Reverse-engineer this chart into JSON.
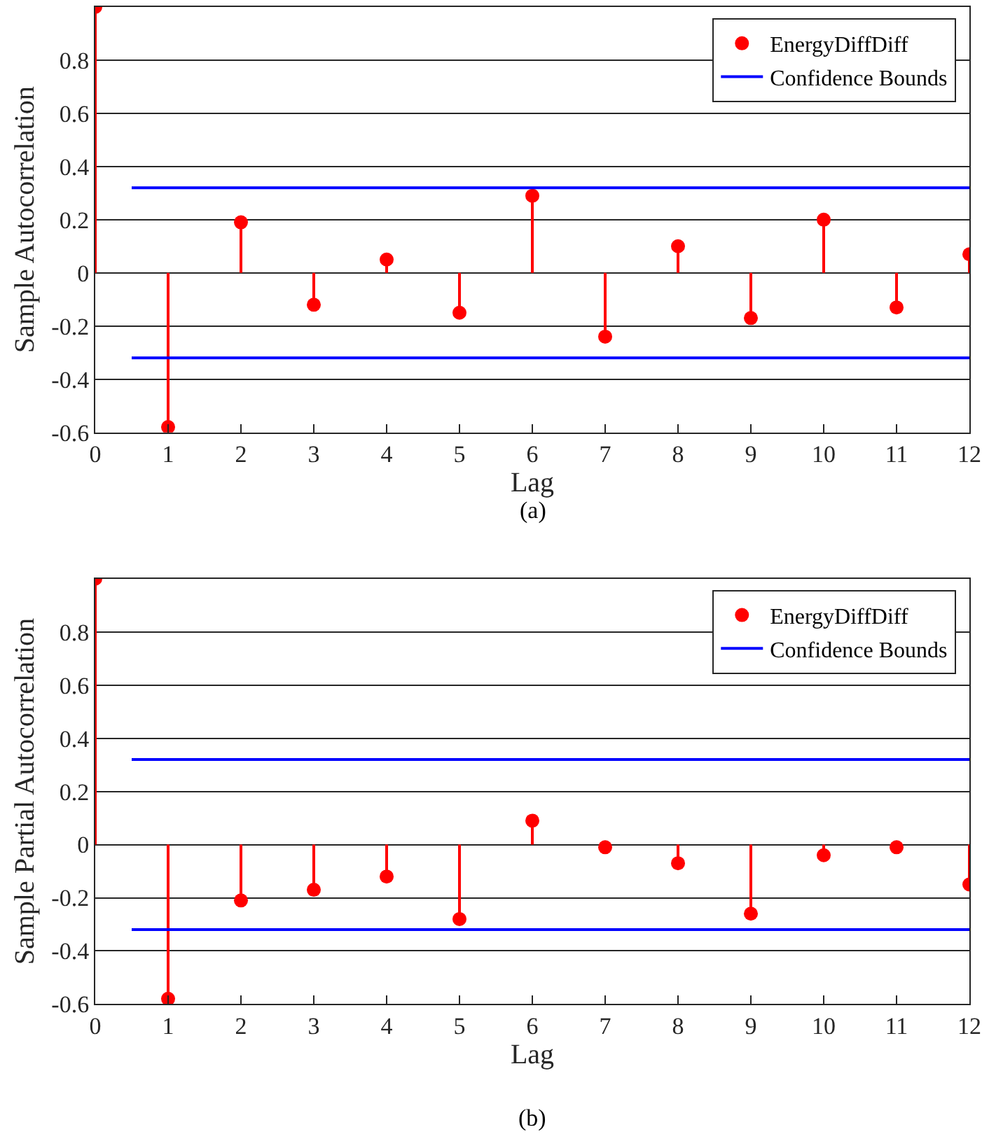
{
  "chart_data": [
    {
      "type": "lollipop",
      "xlabel": "Lag",
      "ylabel": "Sample Autocorrelation",
      "annotations": [
        "(a)"
      ],
      "xlim": [
        0,
        12
      ],
      "xticks": [
        0,
        1,
        2,
        3,
        4,
        5,
        6,
        7,
        8,
        9,
        10,
        11,
        12
      ],
      "ylim": [
        -0.6,
        1
      ],
      "yticks": [
        -0.6,
        -0.4,
        -0.2,
        0,
        0.2,
        0.4,
        0.6,
        0.8
      ],
      "grid": "y",
      "legend": "top right",
      "series": [
        {
          "name": "EnergyDiffDiff",
          "marker": "circle",
          "color": "#ff0000",
          "x": [
            0,
            1,
            2,
            3,
            4,
            5,
            6,
            7,
            8,
            9,
            10,
            11,
            12
          ],
          "values": [
            1,
            -0.58,
            0.19,
            -0.12,
            0.05,
            -0.15,
            0.29,
            -0.24,
            0.1,
            -0.17,
            0.2,
            -0.13,
            0.07
          ]
        },
        {
          "name": "Confidence Bounds",
          "type": "line",
          "color": "#0000ff",
          "x": [
            0.5,
            12
          ],
          "values": [
            0.32,
            0.32
          ]
        },
        {
          "type": "line",
          "color": "#0000ff",
          "x": [
            0.5,
            12
          ],
          "values": [
            -0.32,
            -0.32
          ]
        }
      ]
    },
    {
      "type": "lollipop",
      "xlabel": "Lag",
      "ylabel": "Sample Partial Autocorrelation",
      "annotations": [
        "(b)"
      ],
      "xlim": [
        0,
        12
      ],
      "xticks": [
        0,
        1,
        2,
        3,
        4,
        5,
        6,
        7,
        8,
        9,
        10,
        11,
        12
      ],
      "ylim": [
        -0.6,
        1
      ],
      "yticks": [
        -0.6,
        -0.4,
        -0.2,
        0,
        0.2,
        0.4,
        0.6,
        0.8
      ],
      "grid": "y",
      "legend": "top right",
      "series": [
        {
          "name": "EnergyDiffDiff",
          "marker": "circle",
          "color": "#ff0000",
          "x": [
            0,
            1,
            2,
            3,
            4,
            5,
            6,
            7,
            8,
            9,
            10,
            11,
            12
          ],
          "values": [
            1,
            -0.58,
            -0.21,
            -0.17,
            -0.12,
            -0.28,
            0.09,
            -0.01,
            -0.07,
            -0.26,
            -0.04,
            -0.01,
            -0.15
          ]
        },
        {
          "name": "Confidence Bounds",
          "type": "line",
          "color": "#0000ff",
          "x": [
            0.5,
            12
          ],
          "values": [
            0.32,
            0.32
          ]
        },
        {
          "type": "line",
          "color": "#0000ff",
          "x": [
            0.5,
            12
          ],
          "values": [
            -0.32,
            -0.32
          ]
        }
      ]
    }
  ]
}
